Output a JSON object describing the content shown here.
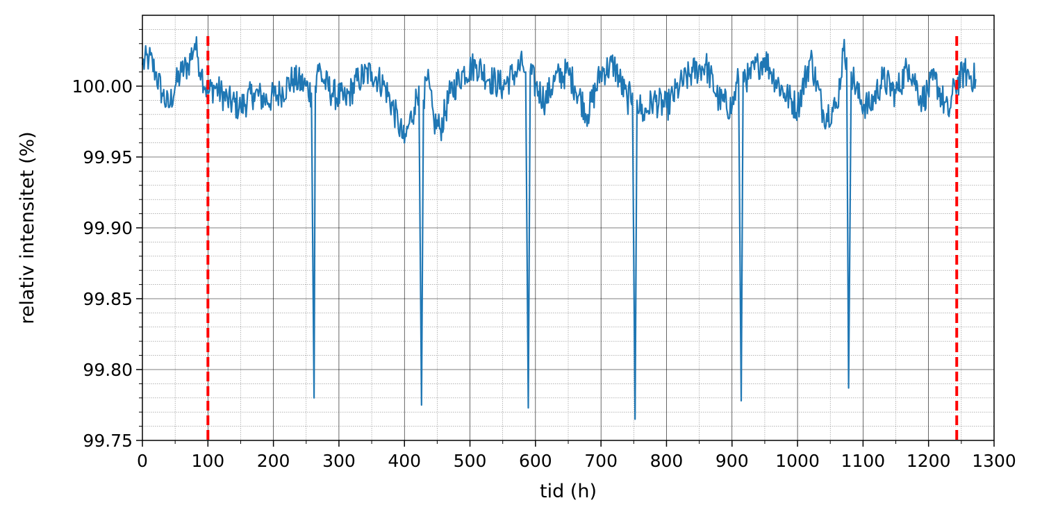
{
  "chart_data": {
    "type": "line",
    "title": "",
    "xlabel": "tid (h)",
    "ylabel": "relativ intensitet (%)",
    "xlim": [
      0,
      1300
    ],
    "ylim": [
      99.75,
      100.05
    ],
    "x_ticks": [
      0,
      100,
      200,
      300,
      400,
      500,
      600,
      700,
      800,
      900,
      1000,
      1100,
      1200,
      1300
    ],
    "x_tick_labels": [
      "0",
      "100",
      "200",
      "300",
      "400",
      "500",
      "600",
      "700",
      "800",
      "900",
      "1000",
      "1100",
      "1200",
      "1300"
    ],
    "y_ticks": [
      99.75,
      99.8,
      99.85,
      99.9,
      99.95,
      100.0
    ],
    "y_tick_labels": [
      "99.75",
      "99.80",
      "99.85",
      "99.90",
      "99.95",
      "100.00"
    ],
    "grid": "major and minor",
    "legend": "none",
    "colors": {
      "series": "#1f77b4",
      "markers": "#ff0000",
      "major_grid": "#000000",
      "minor_grid": "#888888"
    },
    "series": [
      {
        "color": "#1f77b4",
        "x": [
          0,
          10,
          20,
          30,
          40,
          50,
          60,
          70,
          80,
          85,
          90,
          100,
          110,
          130,
          150,
          170,
          190,
          210,
          230,
          250,
          258,
          262,
          264,
          268,
          275,
          290,
          310,
          330,
          350,
          370,
          390,
          400,
          405,
          415,
          422,
          426,
          429,
          435,
          445,
          455,
          470,
          490,
          510,
          530,
          550,
          570,
          580,
          585,
          589,
          592,
          600,
          615,
          630,
          650,
          660,
          680,
          700,
          720,
          740,
          748,
          752,
          755,
          765,
          780,
          800,
          820,
          840,
          860,
          880,
          900,
          910,
          914,
          917,
          925,
          940,
          950,
          960,
          980,
          1000,
          1020,
          1040,
          1060,
          1070,
          1075,
          1078,
          1082,
          1095,
          1110,
          1130,
          1150,
          1170,
          1190,
          1210,
          1230,
          1240,
          1255,
          1272
        ],
        "y": [
          100.015,
          100.02,
          100.01,
          99.995,
          99.985,
          100.0,
          100.01,
          100.015,
          100.03,
          100.02,
          100.01,
          99.995,
          100.0,
          99.99,
          99.985,
          99.995,
          99.99,
          99.995,
          100.005,
          100.0,
          99.995,
          99.78,
          100.0,
          100.015,
          100.005,
          99.995,
          99.99,
          100.005,
          100.01,
          100.0,
          99.975,
          99.96,
          99.97,
          99.985,
          100.0,
          99.775,
          99.99,
          100.005,
          99.975,
          99.97,
          99.995,
          100.01,
          100.015,
          100.005,
          100.0,
          100.01,
          100.015,
          100.01,
          99.773,
          100.01,
          100.0,
          99.99,
          100.005,
          100.01,
          100.0,
          99.98,
          100.01,
          100.015,
          99.99,
          99.995,
          99.765,
          99.99,
          99.98,
          99.99,
          99.985,
          100.0,
          100.01,
          100.015,
          99.99,
          99.985,
          100.005,
          99.778,
          100.01,
          100.005,
          100.015,
          100.02,
          100.01,
          99.995,
          99.985,
          100.02,
          99.98,
          99.985,
          100.025,
          100.02,
          99.787,
          100.01,
          99.99,
          99.985,
          100.005,
          99.995,
          100.015,
          99.99,
          100.005,
          99.98,
          100.0,
          100.01,
          100.005
        ]
      }
    ],
    "vertical_markers": [
      {
        "x": 100,
        "color": "#ff0000",
        "style": "dashed"
      },
      {
        "x": 1243,
        "color": "#ff0000",
        "style": "dashed"
      }
    ]
  }
}
